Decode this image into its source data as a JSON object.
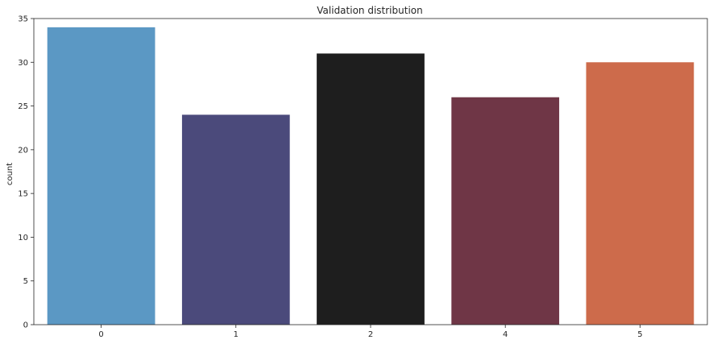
{
  "chart_data": {
    "type": "bar",
    "title": "Validation distribution",
    "xlabel": "",
    "ylabel": "count",
    "categories": [
      "0",
      "1",
      "2",
      "4",
      "5"
    ],
    "values": [
      34,
      24,
      31,
      26,
      30
    ],
    "colors": [
      "#5b98c4",
      "#4b4a7b",
      "#1e1e1e",
      "#6f3646",
      "#cd6b4b"
    ],
    "ylim": [
      0,
      35
    ],
    "yticks": [
      0,
      5,
      10,
      15,
      20,
      25,
      30,
      35
    ],
    "grid": false,
    "legend": "none"
  }
}
